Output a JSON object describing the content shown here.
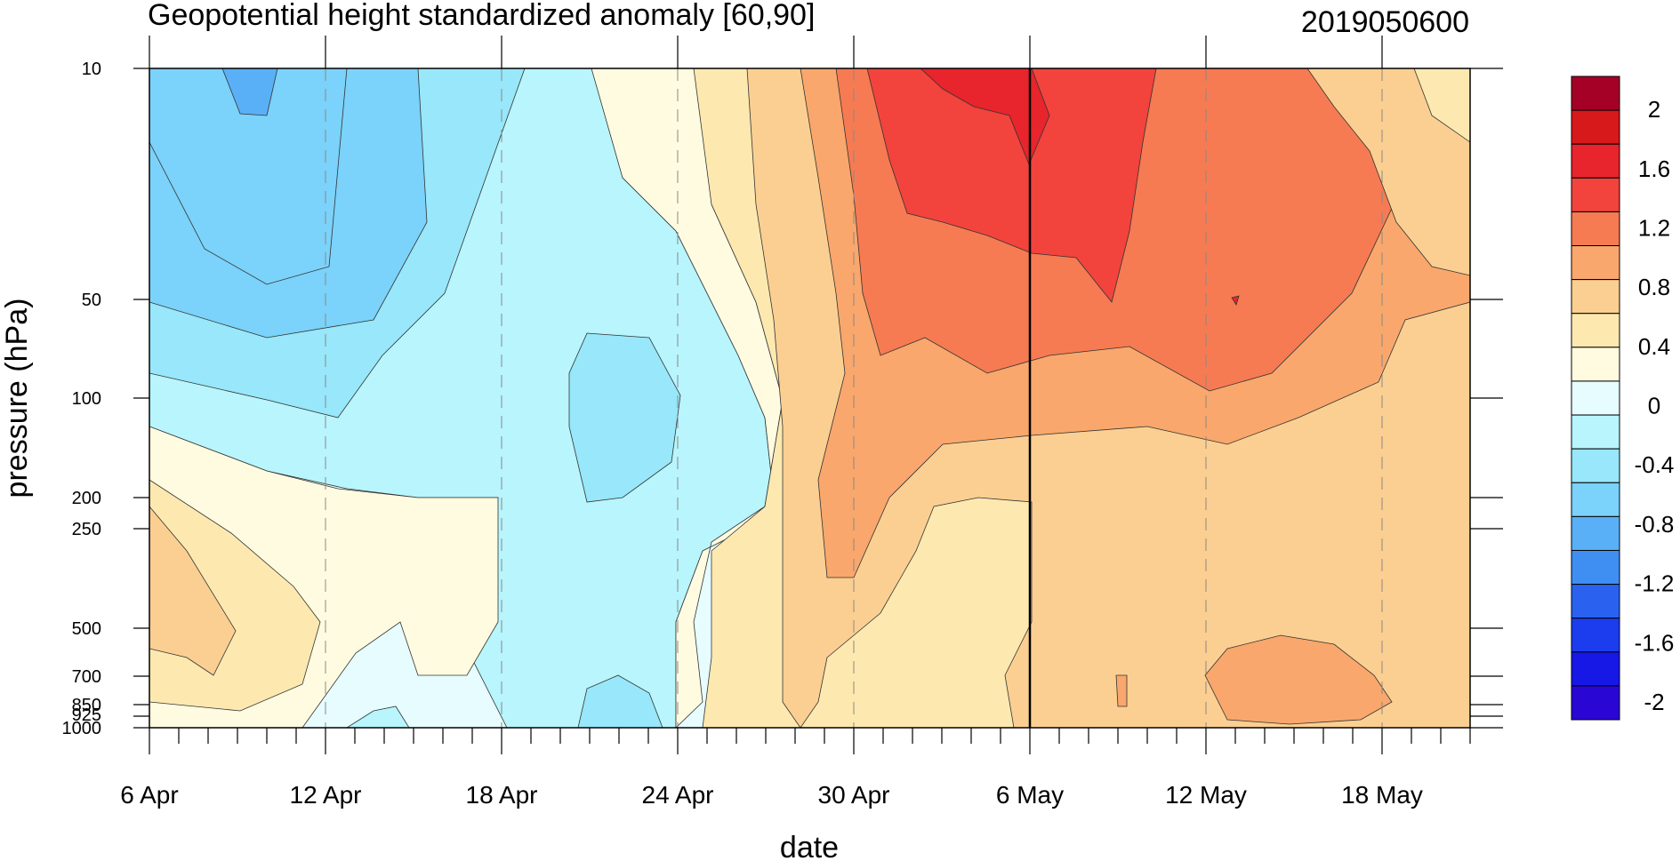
{
  "chart_data": {
    "type": "heatmap",
    "title": "Geopotential height standardized anomaly [60,90]",
    "date_code": "2019050600",
    "xlabel": "date",
    "ylabel": "pressure (hPa)",
    "x_ticks": [
      "6 Apr",
      "12 Apr",
      "18 Apr",
      "24 Apr",
      "30 Apr",
      "6 May",
      "12 May",
      "18 May"
    ],
    "x_range_days": [
      0,
      45
    ],
    "y_ticks": [
      "10",
      "50",
      "100",
      "200",
      "250",
      "500",
      "700",
      "850",
      "925",
      "1000"
    ],
    "y_scale": "log",
    "y_range": [
      1000,
      10
    ],
    "reference_line_date": "6 May",
    "colorbar_labels": [
      "2",
      "1.6",
      "1.2",
      "0.8",
      "0.4",
      "0",
      "-0.4",
      "-0.8",
      "-1.2",
      "-1.6",
      "-2"
    ],
    "colorbar_colors": [
      "#a50026",
      "#d7191c",
      "#e8242c",
      "#f2433d",
      "#f67b52",
      "#f9a76c",
      "#fbcf91",
      "#fde9b0",
      "#fffbe0",
      "#e6fcff",
      "#b8f5fc",
      "#98e7fa",
      "#7bd2fa",
      "#5ab0f6",
      "#3f8ef2",
      "#2a62ef",
      "#1c3ded",
      "#1717e6",
      "#2a06d4"
    ],
    "grid": "vertical dashed at date ticks",
    "legend": "colorbar right"
  }
}
